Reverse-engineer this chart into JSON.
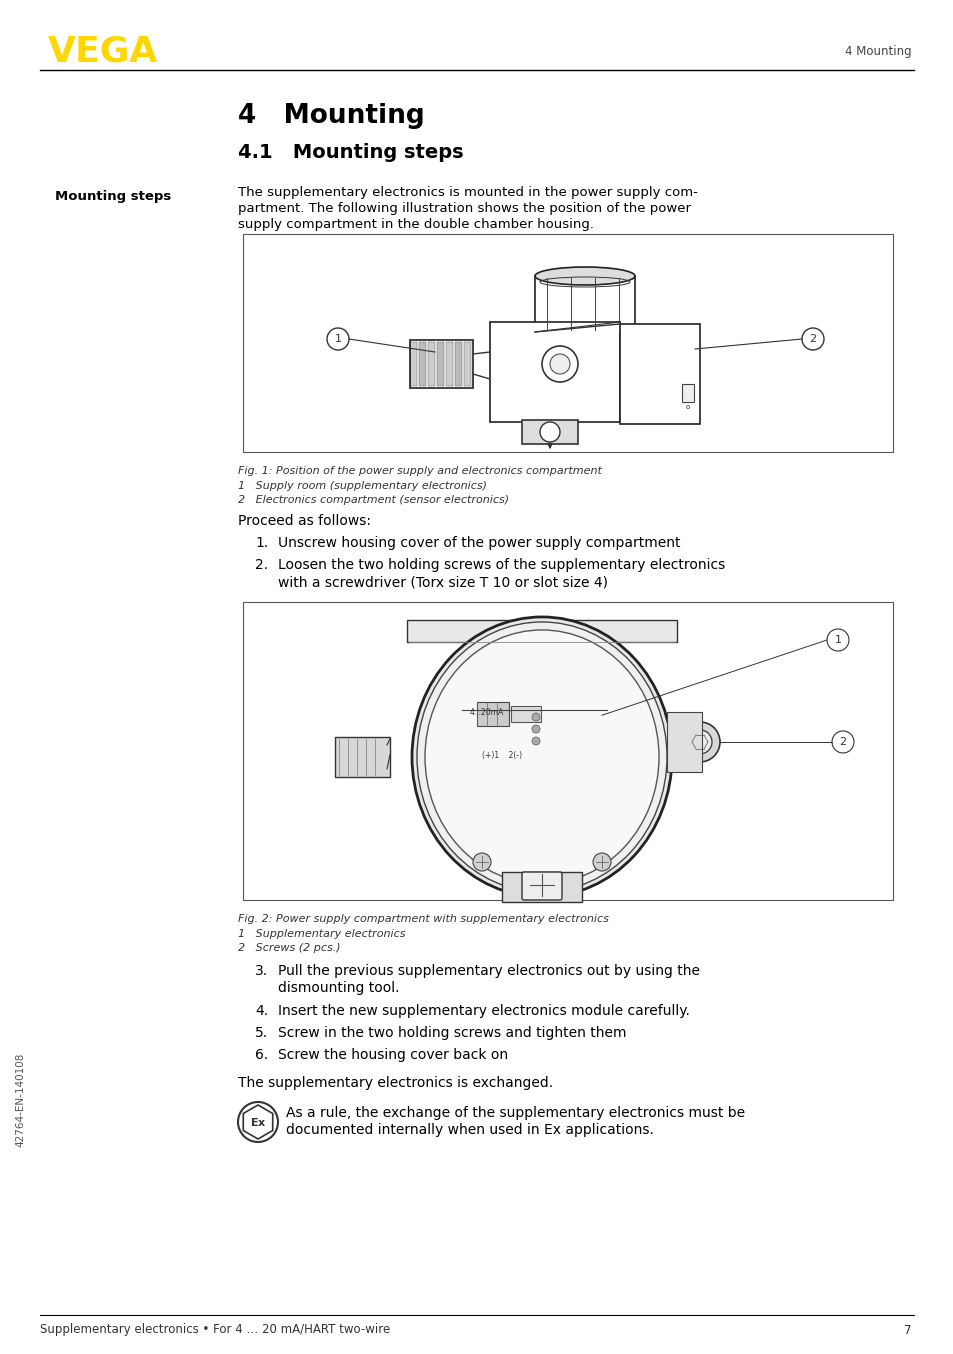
{
  "page_bg": "#ffffff",
  "vega_color": "#FFD700",
  "header_right_text": "4 Mounting",
  "chapter_title": "4   Mounting",
  "section_title": "4.1   Mounting steps",
  "sidebar_label": "Mounting steps",
  "body_text_1a": "The supplementary electronics is mounted in the power supply com-",
  "body_text_1b": "partment. The following illustration shows the position of the power",
  "body_text_1c": "supply compartment in the double chamber housing.",
  "fig1_caption": "Fig. 1: Position of the power supply and electronics compartment",
  "fig1_item1": "1   Supply room (supplementary electronics)",
  "fig1_item2": "2   Electronics compartment (sensor electronics)",
  "proceed_text": "Proceed as follows:",
  "step1": "Unscrew housing cover of the power supply compartment",
  "step2a": "Loosen the two holding screws of the supplementary electronics",
  "step2b": "with a screwdriver (Torx size T 10 or slot size 4)",
  "fig2_caption": "Fig. 2: Power supply compartment with supplementary electronics",
  "fig2_item1": "1   Supplementary electronics",
  "fig2_item2": "2   Screws (2 pcs.)",
  "step3a": "Pull the previous supplementary electronics out by using the",
  "step3b": "dismounting tool.",
  "step4": "Insert the new supplementary electronics module carefully.",
  "step5": "Screw in the two holding screws and tighten them",
  "step6": "Screw the housing cover back on",
  "exchanged_text": "The supplementary electronics is exchanged.",
  "ex_note1": "As a rule, the exchange of the supplementary electronics must be",
  "ex_note2": "documented internally when used in Ex applications.",
  "footer_text": "Supplementary electronics • For 4 … 20 mA/HART two-wire",
  "footer_page": "7",
  "sidebar_rotated": "42764-EN-140108"
}
